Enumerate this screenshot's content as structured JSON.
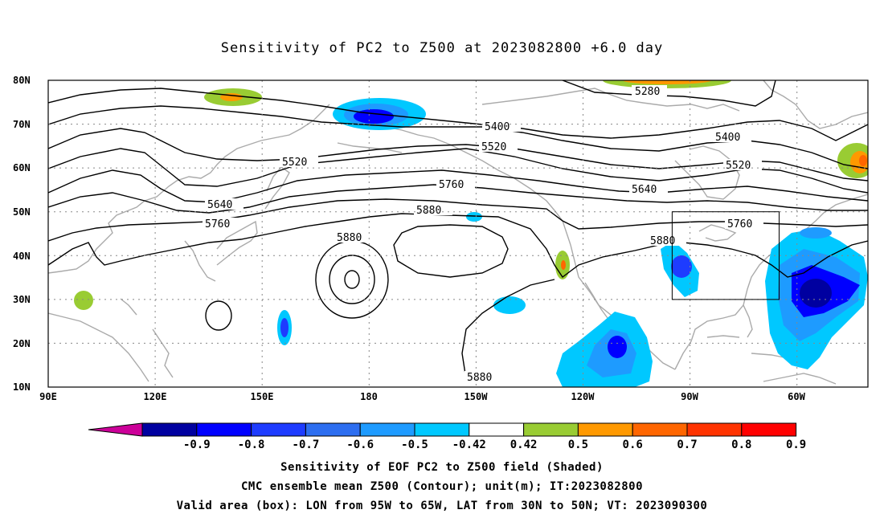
{
  "title": "Sensitivity of PC2 to Z500 at 2023082800 +6.0 day",
  "map": {
    "projection": "cylindrical",
    "lon_range": [
      "90E",
      "40W"
    ],
    "lat_range": [
      "10N",
      "80N"
    ],
    "lat_ticks": [
      "80N",
      "70N",
      "60N",
      "50N",
      "40N",
      "30N",
      "20N",
      "10N"
    ],
    "lon_ticks": [
      "90E",
      "120E",
      "150E",
      "180",
      "150W",
      "120W",
      "90W",
      "60W"
    ],
    "grid": "dotted",
    "contour_labels": [
      "5280",
      "5400",
      "5400",
      "5520",
      "5520",
      "5520",
      "5640",
      "5640",
      "5760",
      "5760",
      "5760",
      "5880",
      "5880",
      "5880",
      "5880"
    ],
    "valid_box": {
      "lon": [
        "95W",
        "65W"
      ],
      "lat": [
        "30N",
        "50N"
      ]
    }
  },
  "colorbar": {
    "labels": [
      "-0.9",
      "-0.8",
      "-0.7",
      "-0.6",
      "-0.5",
      "-0.42",
      "0.42",
      "0.5",
      "0.6",
      "0.7",
      "0.8",
      "0.9"
    ],
    "colors": [
      "#0000a0",
      "#0000ff",
      "#1e3cff",
      "#2d6ef0",
      "#1e9bff",
      "#00c8ff",
      "#ffffff",
      "#99cc33",
      "#ff9900",
      "#ff6600",
      "#ff3300",
      "#ff0000"
    ],
    "left_arrow_color": "#cc0099",
    "right_arrow_color": "#ff99cc"
  },
  "captions": [
    "Sensitivity of EOF PC2 to Z500 field (Shaded)",
    "CMC ensemble mean Z500 (Contour); unit(m); IT:2023082800",
    "Valid area (box): LON from 95W to 65W, LAT from 30N to 50N; VT: 2023090300"
  ]
}
